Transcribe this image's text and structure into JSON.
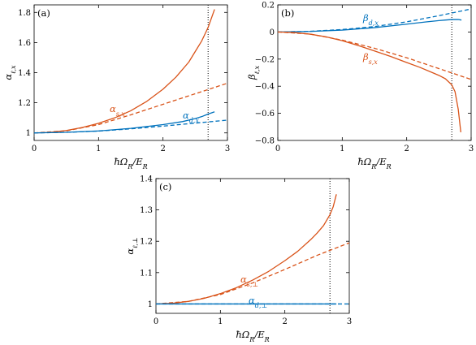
{
  "chart_data": [
    {
      "type": "line",
      "panel_label": "(a)",
      "xlabel": "ħΩ_R/E_R",
      "ylabel": "α_ℓ,x",
      "xlim": [
        0,
        3
      ],
      "ylim": [
        0.95,
        1.85
      ],
      "xticks": [
        0,
        1,
        2,
        3
      ],
      "yticks": [
        1,
        1.2,
        1.4,
        1.6,
        1.8
      ],
      "xtick_labels": [
        "0",
        "1",
        "2",
        "3"
      ],
      "ytick_labels": [
        "1",
        "1.2",
        "1.4",
        "1.6",
        "1.8"
      ],
      "vline_x": 2.7,
      "series": [
        {
          "name": "α_s,x",
          "role": "label",
          "color": "#d95319",
          "dashed": false,
          "x": [
            0,
            0.25,
            0.5,
            0.75,
            1,
            1.25,
            1.5,
            1.75,
            2,
            2.2,
            2.4,
            2.5,
            2.6,
            2.7,
            2.75,
            2.8
          ],
          "y": [
            1.0,
            1.004,
            1.016,
            1.036,
            1.064,
            1.1,
            1.147,
            1.21,
            1.29,
            1.37,
            1.47,
            1.54,
            1.61,
            1.7,
            1.76,
            1.82
          ]
        },
        {
          "name": "",
          "color": "#d95319",
          "dashed": true,
          "x": [
            0,
            0.5,
            1,
            1.5,
            2,
            2.5,
            3
          ],
          "y": [
            1.0,
            1.014,
            1.055,
            1.12,
            1.19,
            1.26,
            1.33
          ]
        },
        {
          "name": "α_d,x",
          "color": "#0072bd",
          "dashed": false,
          "x": [
            0,
            0.5,
            1,
            1.5,
            2,
            2.3,
            2.5,
            2.6,
            2.7,
            2.8
          ],
          "y": [
            1.0,
            1.004,
            1.013,
            1.03,
            1.055,
            1.075,
            1.095,
            1.108,
            1.125,
            1.14
          ]
        },
        {
          "name": "",
          "color": "#0072bd",
          "dashed": true,
          "x": [
            0,
            0.5,
            1,
            1.5,
            2,
            2.5,
            3
          ],
          "y": [
            1.0,
            1.004,
            1.012,
            1.027,
            1.045,
            1.065,
            1.085
          ]
        }
      ]
    },
    {
      "type": "line",
      "panel_label": "(b)",
      "xlabel": "ħΩ_R/E_R",
      "ylabel": "β_ℓ,x",
      "xlim": [
        0,
        3
      ],
      "ylim": [
        -0.8,
        0.2
      ],
      "xticks": [
        0,
        1,
        2,
        3
      ],
      "yticks": [
        -0.8,
        -0.6,
        -0.4,
        -0.2,
        0,
        0.2
      ],
      "xtick_labels": [
        "0",
        "1",
        "2",
        "3"
      ],
      "ytick_labels": [
        "−0.8",
        "−0.6",
        "−0.4",
        "−0.2",
        "0",
        "0.2"
      ],
      "vline_x": 2.7,
      "series": [
        {
          "name": "β_d,x",
          "color": "#0072bd",
          "dashed": false,
          "x": [
            0,
            0.5,
            1,
            1.5,
            2,
            2.3,
            2.5,
            2.6,
            2.7,
            2.8,
            2.85
          ],
          "y": [
            0,
            0.004,
            0.014,
            0.032,
            0.058,
            0.074,
            0.084,
            0.088,
            0.092,
            0.092,
            0.088
          ]
        },
        {
          "name": "",
          "color": "#0072bd",
          "dashed": true,
          "x": [
            0,
            0.5,
            1,
            1.5,
            2,
            2.5,
            3
          ],
          "y": [
            0,
            0.005,
            0.018,
            0.04,
            0.075,
            0.12,
            0.17
          ]
        },
        {
          "name": "β_s,x",
          "color": "#d95319",
          "dashed": false,
          "x": [
            0,
            0.25,
            0.5,
            0.75,
            1,
            1.25,
            1.5,
            1.75,
            2,
            2.2,
            2.4,
            2.5,
            2.6,
            2.7,
            2.75,
            2.8,
            2.84
          ],
          "y": [
            0,
            -0.004,
            -0.016,
            -0.036,
            -0.064,
            -0.1,
            -0.14,
            -0.18,
            -0.225,
            -0.26,
            -0.3,
            -0.32,
            -0.345,
            -0.39,
            -0.44,
            -0.57,
            -0.74
          ]
        },
        {
          "name": "",
          "color": "#d95319",
          "dashed": true,
          "x": [
            0,
            0.5,
            1,
            1.5,
            2,
            2.5,
            3
          ],
          "y": [
            0,
            -0.015,
            -0.06,
            -0.12,
            -0.19,
            -0.27,
            -0.35
          ]
        }
      ]
    },
    {
      "type": "line",
      "panel_label": "(c)",
      "xlabel": "ħΩ_R/E_R",
      "ylabel": "α_ℓ,⊥",
      "xlim": [
        0,
        3
      ],
      "ylim": [
        0.97,
        1.4
      ],
      "xticks": [
        0,
        1,
        2,
        3
      ],
      "yticks": [
        1,
        1.1,
        1.2,
        1.3,
        1.4
      ],
      "xtick_labels": [
        "0",
        "1",
        "2",
        "3"
      ],
      "ytick_labels": [
        "1",
        "1.1",
        "1.2",
        "1.3",
        "1.4"
      ],
      "vline_x": 2.7,
      "series": [
        {
          "name": "α_s,⊥",
          "color": "#d95319",
          "dashed": false,
          "x": [
            0,
            0.25,
            0.5,
            0.75,
            1,
            1.25,
            1.5,
            1.75,
            2,
            2.2,
            2.4,
            2.5,
            2.6,
            2.7,
            2.75,
            2.8
          ],
          "y": [
            1.0,
            1.002,
            1.008,
            1.018,
            1.033,
            1.052,
            1.076,
            1.104,
            1.138,
            1.168,
            1.205,
            1.226,
            1.25,
            1.285,
            1.31,
            1.35
          ]
        },
        {
          "name": "",
          "color": "#d95319",
          "dashed": true,
          "x": [
            0,
            0.5,
            1,
            1.5,
            2,
            2.5,
            3
          ],
          "y": [
            1.0,
            1.008,
            1.03,
            1.067,
            1.11,
            1.155,
            1.195
          ]
        },
        {
          "name": "α_d,⊥",
          "color": "#0072bd",
          "dashed": false,
          "x": [
            0,
            1,
            2,
            2.8
          ],
          "y": [
            1.0,
            1.0,
            1.0,
            1.0
          ]
        },
        {
          "name": "",
          "color": "#0072bd",
          "dashed": true,
          "x": [
            0,
            1,
            2,
            3
          ],
          "y": [
            1.0,
            1.0,
            1.0,
            1.0
          ]
        }
      ]
    }
  ]
}
